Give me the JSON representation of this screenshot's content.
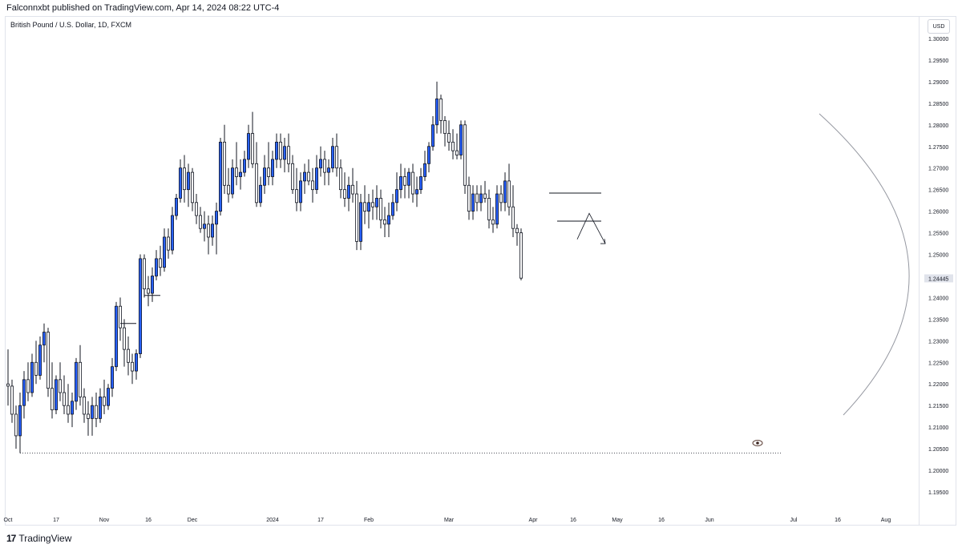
{
  "header": {
    "published": "Falconnxbt published on TradingView.com, Apr 14, 2024 08:22 UTC-4"
  },
  "symbol": "British Pound / U.S. Dollar, 1D, FXCM",
  "currency_badge": "USD",
  "footer": {
    "brand": "TradingView"
  },
  "icons": {
    "eye": "eye-icon",
    "logo": "tradingview-logo-icon"
  },
  "colors": {
    "up_candle": "#2962ff",
    "down_candle": "#ffffff",
    "wick": "#131722",
    "last_price_bg": "#e0e3eb"
  },
  "chart_data": {
    "type": "candlestick",
    "y_axis": {
      "range": [
        1.19,
        1.31
      ],
      "ticks": [
        "1.30000",
        "1.29500",
        "1.29000",
        "1.28500",
        "1.28000",
        "1.27500",
        "1.27000",
        "1.26500",
        "1.26000",
        "1.25500",
        "1.25000",
        "1.24000",
        "1.23500",
        "1.23000",
        "1.22500",
        "1.22000",
        "1.21500",
        "1.21000",
        "1.20500",
        "1.20000",
        "1.19500"
      ],
      "last_price": "1.24445"
    },
    "x_axis": {
      "ticks": [
        {
          "label": "Oct",
          "bar": 0
        },
        {
          "label": "17",
          "bar": 12
        },
        {
          "label": "Nov",
          "bar": 24
        },
        {
          "label": "16",
          "bar": 35
        },
        {
          "label": "Dec",
          "bar": 46
        },
        {
          "label": "2024",
          "bar": 66
        },
        {
          "label": "17",
          "bar": 78
        },
        {
          "label": "Feb",
          "bar": 90
        },
        {
          "label": "Mar",
          "bar": 110
        },
        {
          "label": "Apr",
          "bar": 131
        },
        {
          "label": "16",
          "bar": 141
        },
        {
          "label": "May",
          "bar": 152
        },
        {
          "label": "16",
          "bar": 163
        },
        {
          "label": "Jun",
          "bar": 175
        },
        {
          "label": "Jul",
          "bar": 196
        },
        {
          "label": "16",
          "bar": 207
        },
        {
          "label": "Aug",
          "bar": 219
        }
      ]
    },
    "candles": [
      [
        1.22,
        1.228,
        1.215,
        1.2195
      ],
      [
        1.2195,
        1.221,
        1.211,
        1.213
      ],
      [
        1.213,
        1.215,
        1.205,
        1.208
      ],
      [
        1.208,
        1.218,
        1.204,
        1.215
      ],
      [
        1.215,
        1.223,
        1.212,
        1.221
      ],
      [
        1.221,
        1.225,
        1.216,
        1.218
      ],
      [
        1.218,
        1.227,
        1.217,
        1.225
      ],
      [
        1.225,
        1.23,
        1.22,
        1.222
      ],
      [
        1.222,
        1.231,
        1.221,
        1.229
      ],
      [
        1.229,
        1.234,
        1.225,
        1.232
      ],
      [
        1.232,
        1.233,
        1.217,
        1.219
      ],
      [
        1.219,
        1.225,
        1.212,
        1.214
      ],
      [
        1.214,
        1.222,
        1.213,
        1.221
      ],
      [
        1.221,
        1.225,
        1.216,
        1.218
      ],
      [
        1.218,
        1.222,
        1.213,
        1.215
      ],
      [
        1.215,
        1.22,
        1.211,
        1.213
      ],
      [
        1.213,
        1.218,
        1.21,
        1.216
      ],
      [
        1.216,
        1.226,
        1.214,
        1.225
      ],
      [
        1.225,
        1.229,
        1.215,
        1.217
      ],
      [
        1.217,
        1.219,
        1.211,
        1.213
      ],
      [
        1.213,
        1.216,
        1.208,
        1.212
      ],
      [
        1.212,
        1.217,
        1.208,
        1.215
      ],
      [
        1.215,
        1.218,
        1.21,
        1.212
      ],
      [
        1.212,
        1.219,
        1.211,
        1.217
      ],
      [
        1.217,
        1.221,
        1.213,
        1.215
      ],
      [
        1.215,
        1.22,
        1.214,
        1.219
      ],
      [
        1.219,
        1.226,
        1.217,
        1.224
      ],
      [
        1.224,
        1.239,
        1.223,
        1.238
      ],
      [
        1.238,
        1.24,
        1.23,
        1.233
      ],
      [
        1.233,
        1.235,
        1.224,
        1.228
      ],
      [
        1.228,
        1.231,
        1.222,
        1.225
      ],
      [
        1.225,
        1.227,
        1.22,
        1.223
      ],
      [
        1.223,
        1.228,
        1.221,
        1.227
      ],
      [
        1.227,
        1.25,
        1.226,
        1.249
      ],
      [
        1.249,
        1.25,
        1.24,
        1.242
      ],
      [
        1.242,
        1.245,
        1.238,
        1.241
      ],
      [
        1.241,
        1.247,
        1.239,
        1.245
      ],
      [
        1.245,
        1.251,
        1.244,
        1.249
      ],
      [
        1.249,
        1.252,
        1.245,
        1.247
      ],
      [
        1.247,
        1.256,
        1.246,
        1.254
      ],
      [
        1.254,
        1.256,
        1.249,
        1.251
      ],
      [
        1.251,
        1.261,
        1.25,
        1.259
      ],
      [
        1.259,
        1.264,
        1.258,
        1.263
      ],
      [
        1.263,
        1.272,
        1.262,
        1.27
      ],
      [
        1.27,
        1.273,
        1.262,
        1.265
      ],
      [
        1.265,
        1.271,
        1.261,
        1.269
      ],
      [
        1.269,
        1.27,
        1.26,
        1.262
      ],
      [
        1.262,
        1.264,
        1.257,
        1.259
      ],
      [
        1.259,
        1.261,
        1.255,
        1.256
      ],
      [
        1.256,
        1.26,
        1.253,
        1.257
      ],
      [
        1.257,
        1.259,
        1.25,
        1.254
      ],
      [
        1.254,
        1.259,
        1.252,
        1.257
      ],
      [
        1.257,
        1.262,
        1.25,
        1.26
      ],
      [
        1.26,
        1.277,
        1.259,
        1.276
      ],
      [
        1.276,
        1.28,
        1.264,
        1.266
      ],
      [
        1.266,
        1.27,
        1.262,
        1.264
      ],
      [
        1.264,
        1.272,
        1.263,
        1.27
      ],
      [
        1.27,
        1.276,
        1.266,
        1.268
      ],
      [
        1.268,
        1.272,
        1.265,
        1.269
      ],
      [
        1.269,
        1.274,
        1.268,
        1.272
      ],
      [
        1.272,
        1.28,
        1.27,
        1.278
      ],
      [
        1.278,
        1.283,
        1.27,
        1.271
      ],
      [
        1.271,
        1.276,
        1.261,
        1.262
      ],
      [
        1.262,
        1.268,
        1.261,
        1.266
      ],
      [
        1.266,
        1.273,
        1.264,
        1.27
      ],
      [
        1.27,
        1.276,
        1.266,
        1.268
      ],
      [
        1.268,
        1.274,
        1.266,
        1.272
      ],
      [
        1.272,
        1.278,
        1.27,
        1.276
      ],
      [
        1.276,
        1.278,
        1.27,
        1.272
      ],
      [
        1.272,
        1.277,
        1.269,
        1.275
      ],
      [
        1.275,
        1.278,
        1.269,
        1.271
      ],
      [
        1.271,
        1.273,
        1.264,
        1.265
      ],
      [
        1.265,
        1.27,
        1.26,
        1.262
      ],
      [
        1.262,
        1.269,
        1.26,
        1.267
      ],
      [
        1.267,
        1.271,
        1.264,
        1.269
      ],
      [
        1.269,
        1.272,
        1.266,
        1.267
      ],
      [
        1.267,
        1.27,
        1.262,
        1.265
      ],
      [
        1.265,
        1.273,
        1.264,
        1.27
      ],
      [
        1.27,
        1.275,
        1.268,
        1.272
      ],
      [
        1.272,
        1.274,
        1.266,
        1.269
      ],
      [
        1.269,
        1.272,
        1.266,
        1.27
      ],
      [
        1.27,
        1.277,
        1.269,
        1.275
      ],
      [
        1.275,
        1.278,
        1.268,
        1.27
      ],
      [
        1.27,
        1.272,
        1.263,
        1.265
      ],
      [
        1.265,
        1.269,
        1.261,
        1.263
      ],
      [
        1.263,
        1.268,
        1.26,
        1.266
      ],
      [
        1.266,
        1.27,
        1.262,
        1.264
      ],
      [
        1.264,
        1.267,
        1.251,
        1.253
      ],
      [
        1.253,
        1.264,
        1.251,
        1.262
      ],
      [
        1.262,
        1.266,
        1.257,
        1.26
      ],
      [
        1.26,
        1.264,
        1.256,
        1.262
      ],
      [
        1.262,
        1.265,
        1.258,
        1.261
      ],
      [
        1.261,
        1.266,
        1.258,
        1.263
      ],
      [
        1.263,
        1.265,
        1.256,
        1.258
      ],
      [
        1.258,
        1.261,
        1.254,
        1.257
      ],
      [
        1.257,
        1.262,
        1.254,
        1.259
      ],
      [
        1.259,
        1.264,
        1.258,
        1.262
      ],
      [
        1.262,
        1.269,
        1.26,
        1.265
      ],
      [
        1.265,
        1.271,
        1.263,
        1.268
      ],
      [
        1.268,
        1.27,
        1.263,
        1.266
      ],
      [
        1.266,
        1.27,
        1.263,
        1.269
      ],
      [
        1.269,
        1.271,
        1.262,
        1.264
      ],
      [
        1.264,
        1.268,
        1.261,
        1.265
      ],
      [
        1.265,
        1.27,
        1.264,
        1.268
      ],
      [
        1.268,
        1.274,
        1.267,
        1.271
      ],
      [
        1.271,
        1.276,
        1.269,
        1.275
      ],
      [
        1.275,
        1.282,
        1.274,
        1.28
      ],
      [
        1.28,
        1.29,
        1.278,
        1.286
      ],
      [
        1.286,
        1.287,
        1.278,
        1.281
      ],
      [
        1.281,
        1.282,
        1.275,
        1.278
      ],
      [
        1.278,
        1.281,
        1.274,
        1.276
      ],
      [
        1.276,
        1.279,
        1.272,
        1.274
      ],
      [
        1.274,
        1.278,
        1.272,
        1.273
      ],
      [
        1.273,
        1.281,
        1.272,
        1.28
      ],
      [
        1.28,
        1.281,
        1.264,
        1.266
      ],
      [
        1.266,
        1.268,
        1.258,
        1.26
      ],
      [
        1.26,
        1.266,
        1.258,
        1.264
      ],
      [
        1.264,
        1.266,
        1.26,
        1.262
      ],
      [
        1.262,
        1.266,
        1.26,
        1.264
      ],
      [
        1.264,
        1.267,
        1.262,
        1.263
      ],
      [
        1.263,
        1.265,
        1.256,
        1.258
      ],
      [
        1.258,
        1.261,
        1.255,
        1.257
      ],
      [
        1.257,
        1.266,
        1.256,
        1.264
      ],
      [
        1.264,
        1.266,
        1.26,
        1.262
      ],
      [
        1.262,
        1.269,
        1.26,
        1.267
      ],
      [
        1.267,
        1.271,
        1.259,
        1.261
      ],
      [
        1.261,
        1.266,
        1.254,
        1.256
      ],
      [
        1.256,
        1.257,
        1.252,
        1.255
      ],
      [
        1.255,
        1.256,
        1.244,
        1.2445
      ]
    ],
    "annotations": {
      "horizontal_lines": [
        {
          "from_bar": 135,
          "to_bar": 148,
          "y": 1.2642
        },
        {
          "from_bar": 137,
          "to_bar": 148,
          "y": 1.2577
        },
        {
          "from_bar": 28,
          "to_bar": 32,
          "y": 1.234
        },
        {
          "from_bar": 34,
          "to_bar": 38,
          "y": 1.2405
        }
      ],
      "dotted_support": {
        "from_bar": 3,
        "to_bar": 193,
        "y": 1.204
      },
      "projection_path": [
        [
          142,
          1.2535
        ],
        [
          145,
          1.2595
        ],
        [
          149,
          1.2525
        ]
      ]
    }
  }
}
